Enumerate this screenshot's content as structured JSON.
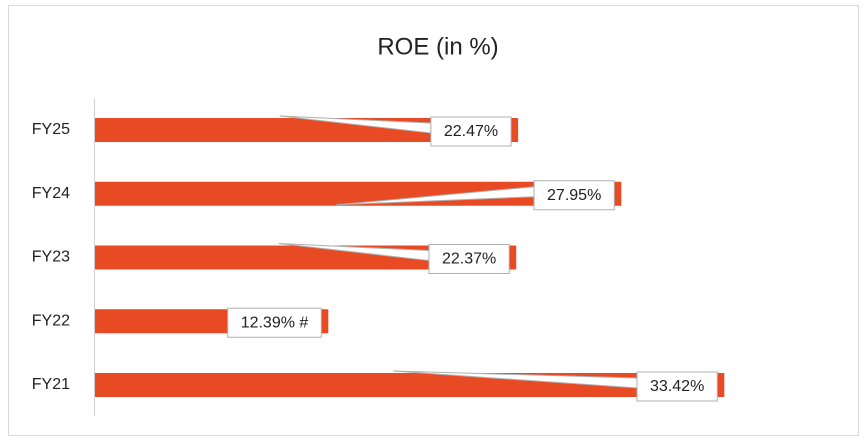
{
  "chart_data": {
    "type": "bar",
    "orientation": "horizontal",
    "title": "ROE (in %)",
    "categories": [
      "FY25",
      "FY24",
      "FY23",
      "FY22",
      "FY21"
    ],
    "values": [
      22.47,
      27.95,
      22.37,
      12.39,
      33.42
    ],
    "value_labels": [
      "22.47%",
      "27.95%",
      "22.37%",
      "12.39% #",
      "33.42%"
    ],
    "color": "#e84a24"
  }
}
